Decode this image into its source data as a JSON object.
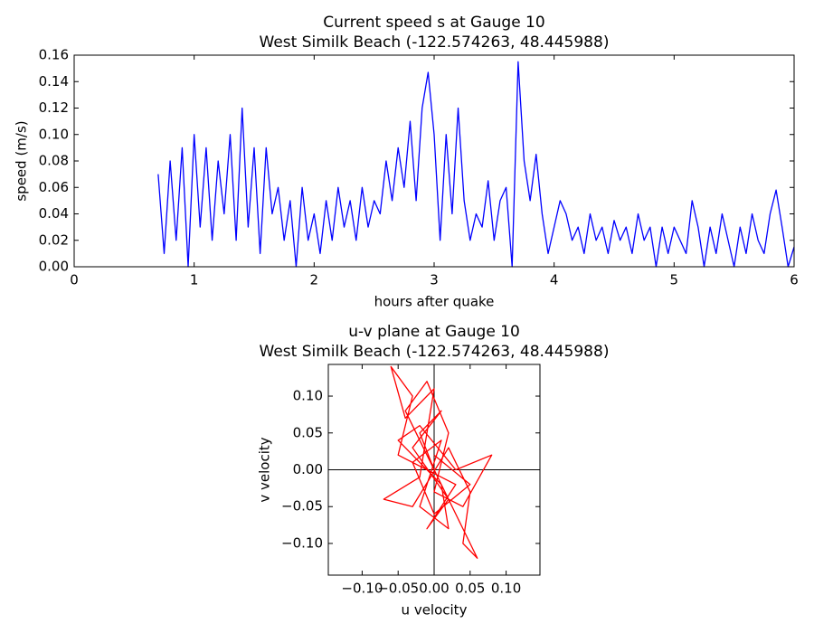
{
  "chart_data": [
    {
      "type": "line",
      "title": "Current speed s at Gauge 10",
      "subtitle": "West Similk Beach  (-122.574263, 48.445988)",
      "x_label": "hours after quake",
      "y_label": "speed (m/s)",
      "xlim": [
        0,
        6
      ],
      "xticks": [
        0,
        1,
        2,
        3,
        4,
        5,
        6
      ],
      "ylim": [
        0,
        0.16
      ],
      "yticks": [
        {
          "value": 0,
          "label": "0.00"
        },
        {
          "value": 0.02,
          "label": "0.02"
        },
        {
          "value": 0.04,
          "label": "0.04"
        },
        {
          "value": 0.06,
          "label": "0.06"
        },
        {
          "value": 0.08,
          "label": "0.08"
        },
        {
          "value": 0.1,
          "label": "0.10"
        },
        {
          "value": 0.12,
          "label": "0.12"
        },
        {
          "value": 0.14,
          "label": "0.14"
        },
        {
          "value": 0.16,
          "label": "0.16"
        }
      ],
      "series": [
        {
          "color": "#0000ff",
          "x": [
            0.7,
            0.75,
            0.8,
            0.85,
            0.9,
            0.95,
            1.0,
            1.05,
            1.1,
            1.15,
            1.2,
            1.25,
            1.3,
            1.35,
            1.4,
            1.45,
            1.5,
            1.55,
            1.6,
            1.65,
            1.7,
            1.75,
            1.8,
            1.85,
            1.9,
            1.95,
            2.0,
            2.05,
            2.1,
            2.15,
            2.2,
            2.25,
            2.3,
            2.35,
            2.4,
            2.45,
            2.5,
            2.55,
            2.6,
            2.65,
            2.7,
            2.75,
            2.8,
            2.85,
            2.9,
            2.95,
            3.0,
            3.05,
            3.1,
            3.15,
            3.2,
            3.25,
            3.3,
            3.35,
            3.4,
            3.45,
            3.5,
            3.55,
            3.6,
            3.65,
            3.7,
            3.75,
            3.8,
            3.85,
            3.9,
            3.95,
            4.0,
            4.05,
            4.1,
            4.15,
            4.2,
            4.25,
            4.3,
            4.35,
            4.4,
            4.45,
            4.5,
            4.55,
            4.6,
            4.65,
            4.7,
            4.75,
            4.8,
            4.85,
            4.9,
            4.95,
            5.0,
            5.05,
            5.1,
            5.15,
            5.2,
            5.25,
            5.3,
            5.35,
            5.4,
            5.45,
            5.5,
            5.55,
            5.6,
            5.65,
            5.7,
            5.75,
            5.8,
            5.85,
            5.9,
            5.95,
            6.0
          ],
          "values": [
            0.07,
            0.01,
            0.08,
            0.02,
            0.09,
            0.0,
            0.1,
            0.03,
            0.09,
            0.02,
            0.08,
            0.04,
            0.1,
            0.02,
            0.12,
            0.03,
            0.09,
            0.01,
            0.09,
            0.04,
            0.06,
            0.02,
            0.05,
            0.0,
            0.06,
            0.02,
            0.04,
            0.01,
            0.05,
            0.02,
            0.06,
            0.03,
            0.05,
            0.02,
            0.06,
            0.03,
            0.05,
            0.04,
            0.08,
            0.05,
            0.09,
            0.06,
            0.11,
            0.05,
            0.12,
            0.147,
            0.1,
            0.02,
            0.1,
            0.04,
            0.12,
            0.05,
            0.02,
            0.04,
            0.03,
            0.065,
            0.02,
            0.05,
            0.06,
            0.0,
            0.155,
            0.08,
            0.05,
            0.085,
            0.04,
            0.01,
            0.03,
            0.05,
            0.04,
            0.02,
            0.03,
            0.01,
            0.04,
            0.02,
            0.03,
            0.01,
            0.035,
            0.02,
            0.03,
            0.01,
            0.04,
            0.02,
            0.03,
            0.0,
            0.03,
            0.01,
            0.03,
            0.02,
            0.01,
            0.05,
            0.03,
            0.0,
            0.03,
            0.01,
            0.04,
            0.02,
            0.0,
            0.03,
            0.01,
            0.04,
            0.02,
            0.01,
            0.04,
            0.058,
            0.03,
            0.0,
            0.015
          ]
        }
      ]
    },
    {
      "type": "uv",
      "title": "u-v plane at Gauge 10",
      "subtitle": "West Similk Beach  (-122.574263, 48.445988)",
      "x_label": "u velocity",
      "y_label": "v velocity",
      "xlim": [
        -0.147,
        0.147
      ],
      "xticks": [
        {
          "value": -0.1,
          "label": "−0.10"
        },
        {
          "value": -0.05,
          "label": "−0.05"
        },
        {
          "value": 0,
          "label": "0.00"
        },
        {
          "value": 0.05,
          "label": "0.05"
        },
        {
          "value": 0.1,
          "label": "0.10"
        }
      ],
      "ylim": [
        -0.143,
        0.143
      ],
      "yticks": [
        {
          "value": -0.1,
          "label": "−0.10"
        },
        {
          "value": -0.05,
          "label": "−0.05"
        },
        {
          "value": 0,
          "label": "0.00"
        },
        {
          "value": 0.05,
          "label": "0.05"
        },
        {
          "value": 0.1,
          "label": "0.10"
        }
      ],
      "series": [
        {
          "color": "#ff0000",
          "x": [
            0,
            -0.02,
            0.01,
            -0.03,
            0.02,
            -0.01,
            0.03,
            -0.05,
            -0.03,
            -0.06,
            -0.04,
            0.0,
            -0.02,
            -0.07,
            -0.03,
            0.02,
            0.05,
            0.04,
            0.06,
            0.03,
            -0.01,
            -0.04,
            -0.01,
            0.02,
            0.0,
            0.04,
            0.08,
            0.03,
            -0.02,
            -0.05,
            0.01,
            0.02,
            -0.02,
            0.01,
            -0.03,
            0.0,
            0.05,
            0.0
          ],
          "values": [
            0,
            0.05,
            0.08,
            0.03,
            -0.04,
            -0.08,
            -0.02,
            0.02,
            0.1,
            0.14,
            0.07,
            0.11,
            -0.01,
            -0.04,
            -0.05,
            0.03,
            -0.03,
            -0.1,
            -0.12,
            -0.06,
            0.02,
            0.08,
            0.12,
            0.05,
            -0.03,
            -0.05,
            0.02,
            0.0,
            0.06,
            0.04,
            -0.02,
            -0.08,
            -0.05,
            0.04,
            0.01,
            -0.06,
            -0.02,
            0.02
          ]
        }
      ]
    }
  ]
}
